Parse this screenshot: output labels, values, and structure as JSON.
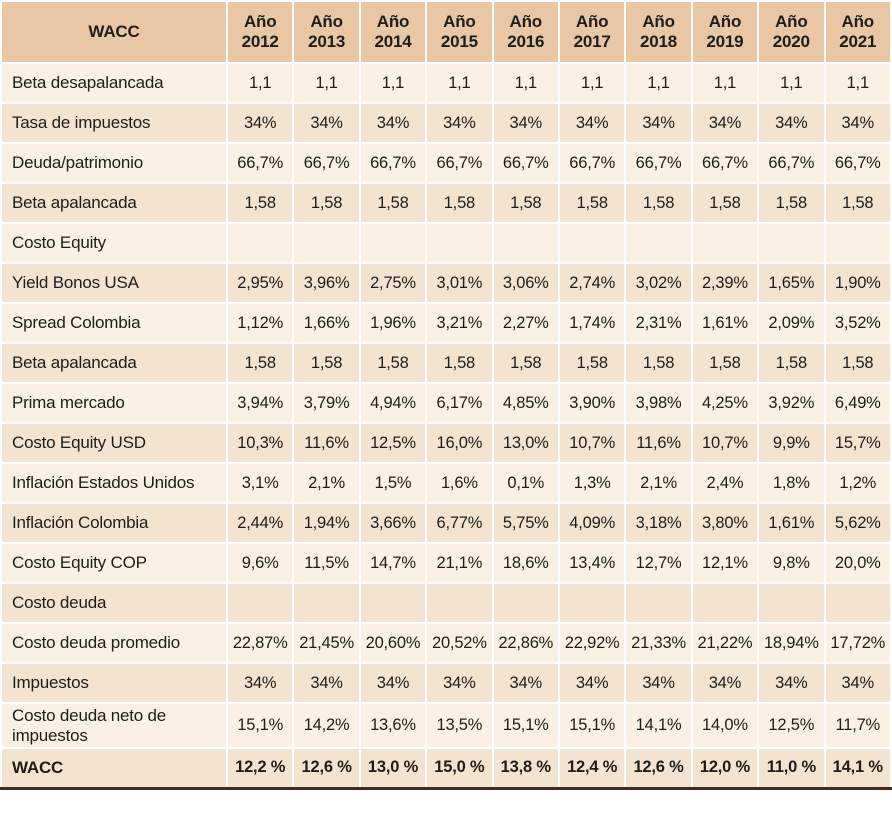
{
  "chart_data": {
    "type": "table",
    "title": "WACC",
    "header": {
      "corner_label": "WACC",
      "year_prefix": "Año",
      "years": [
        "2012",
        "2013",
        "2014",
        "2015",
        "2016",
        "2017",
        "2018",
        "2019",
        "2020",
        "2021"
      ]
    },
    "rows": [
      {
        "label": "Beta desapalancada",
        "type": "data",
        "values": [
          "1,1",
          "1,1",
          "1,1",
          "1,1",
          "1,1",
          "1,1",
          "1,1",
          "1,1",
          "1,1",
          "1,1"
        ]
      },
      {
        "label": "Tasa de impuestos",
        "type": "data",
        "values": [
          "34%",
          "34%",
          "34%",
          "34%",
          "34%",
          "34%",
          "34%",
          "34%",
          "34%",
          "34%"
        ]
      },
      {
        "label": "Deuda/patrimonio",
        "type": "data",
        "values": [
          "66,7%",
          "66,7%",
          "66,7%",
          "66,7%",
          "66,7%",
          "66,7%",
          "66,7%",
          "66,7%",
          "66,7%",
          "66,7%"
        ]
      },
      {
        "label": "Beta apalancada",
        "type": "data",
        "values": [
          "1,58",
          "1,58",
          "1,58",
          "1,58",
          "1,58",
          "1,58",
          "1,58",
          "1,58",
          "1,58",
          "1,58"
        ]
      },
      {
        "label": "Costo Equity",
        "type": "section",
        "values": [
          "",
          "",
          "",
          "",
          "",
          "",
          "",
          "",
          "",
          ""
        ]
      },
      {
        "label": "Yield Bonos USA",
        "type": "data",
        "values": [
          "2,95%",
          "3,96%",
          "2,75%",
          "3,01%",
          "3,06%",
          "2,74%",
          "3,02%",
          "2,39%",
          "1,65%",
          "1,90%"
        ]
      },
      {
        "label": "Spread Colombia",
        "type": "data",
        "values": [
          "1,12%",
          "1,66%",
          "1,96%",
          "3,21%",
          "2,27%",
          "1,74%",
          "2,31%",
          "1,61%",
          "2,09%",
          "3,52%"
        ]
      },
      {
        "label": "Beta apalancada",
        "type": "data",
        "values": [
          "1,58",
          "1,58",
          "1,58",
          "1,58",
          "1,58",
          "1,58",
          "1,58",
          "1,58",
          "1,58",
          "1,58"
        ]
      },
      {
        "label": "Prima mercado",
        "type": "data",
        "values": [
          "3,94%",
          "3,79%",
          "4,94%",
          "6,17%",
          "4,85%",
          "3,90%",
          "3,98%",
          "4,25%",
          "3,92%",
          "6,49%"
        ]
      },
      {
        "label": "Costo Equity USD",
        "type": "data",
        "values": [
          "10,3%",
          "11,6%",
          "12,5%",
          "16,0%",
          "13,0%",
          "10,7%",
          "11,6%",
          "10,7%",
          "9,9%",
          "15,7%"
        ]
      },
      {
        "label": "Inflación Estados Unidos",
        "type": "data",
        "values": [
          "3,1%",
          "2,1%",
          "1,5%",
          "1,6%",
          "0,1%",
          "1,3%",
          "2,1%",
          "2,4%",
          "1,8%",
          "1,2%"
        ]
      },
      {
        "label": "Inflación Colombia",
        "type": "data",
        "values": [
          "2,44%",
          "1,94%",
          "3,66%",
          "6,77%",
          "5,75%",
          "4,09%",
          "3,18%",
          "3,80%",
          "1,61%",
          "5,62%"
        ]
      },
      {
        "label": "Costo Equity COP",
        "type": "data",
        "values": [
          "9,6%",
          "11,5%",
          "14,7%",
          "21,1%",
          "18,6%",
          "13,4%",
          "12,7%",
          "12,1%",
          "9,8%",
          "20,0%"
        ]
      },
      {
        "label": "Costo deuda",
        "type": "section",
        "values": [
          "",
          "",
          "",
          "",
          "",
          "",
          "",
          "",
          "",
          ""
        ]
      },
      {
        "label": "Costo deuda promedio",
        "type": "data",
        "values": [
          "22,87%",
          "21,45%",
          "20,60%",
          "20,52%",
          "22,86%",
          "22,92%",
          "21,33%",
          "21,22%",
          "18,94%",
          "17,72%"
        ]
      },
      {
        "label": "Impuestos",
        "type": "data",
        "values": [
          "34%",
          "34%",
          "34%",
          "34%",
          "34%",
          "34%",
          "34%",
          "34%",
          "34%",
          "34%"
        ]
      },
      {
        "label": "Costo deuda neto de impuestos",
        "type": "data",
        "values": [
          "15,1%",
          "14,2%",
          "13,6%",
          "13,5%",
          "15,1%",
          "15,1%",
          "14,1%",
          "14,0%",
          "12,5%",
          "11,7%"
        ]
      },
      {
        "label": "WACC",
        "type": "total",
        "values": [
          "12,2 %",
          "12,6 %",
          "13,0 %",
          "15,0 %",
          "13,8 %",
          "12,4 %",
          "12,6 %",
          "12,0 %",
          "11,0 %",
          "14,1 %"
        ]
      }
    ]
  },
  "style": {
    "header_bg": "#e9c7a4",
    "row_light": "#faf0e4",
    "row_dark": "#f4e3d1",
    "gridline": "#ffffff",
    "text": "#1d1d1b",
    "bottom_border": "#3f2d1d"
  }
}
